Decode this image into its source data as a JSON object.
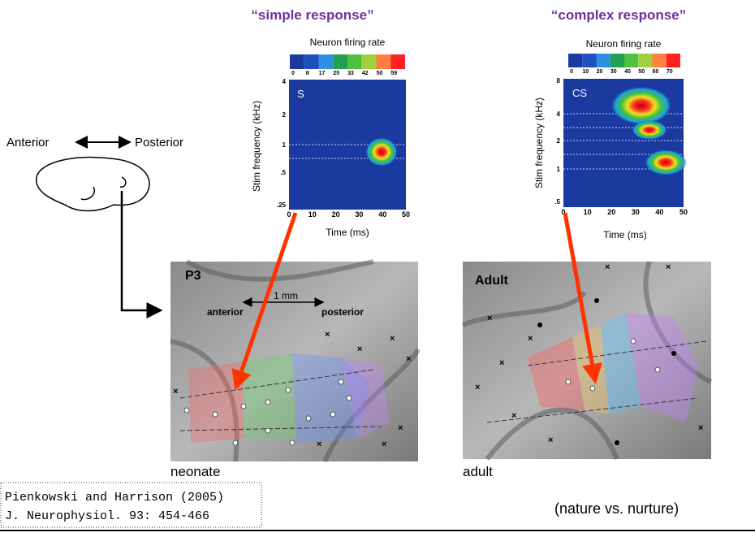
{
  "titles": {
    "simple": "“simple response”",
    "complex": "“complex response”"
  },
  "left_panel": {
    "anterior": "Anterior",
    "posterior": "Posterior"
  },
  "simple_plot": {
    "colorbar_title": "Neuron firing rate",
    "colorbar_ticks": [
      "0",
      "8",
      "17",
      "25",
      "33",
      "42",
      "50",
      "59"
    ],
    "panel_label": "S",
    "y_label": "Stim  frequency (kHz)",
    "y_ticks": [
      "4",
      "2",
      "1",
      ".5",
      ".25"
    ],
    "x_label": "Time (ms)",
    "x_ticks": [
      "0",
      "10",
      "20",
      "30",
      "40",
      "50"
    ]
  },
  "complex_plot": {
    "colorbar_title": "Neuron firing rate",
    "colorbar_ticks": [
      "0",
      "10",
      "20",
      "30",
      "40",
      "50",
      "60",
      "70"
    ],
    "panel_label": "CS",
    "y_label": "Stim  frequency (kHz)",
    "y_ticks": [
      "8",
      "4",
      "2",
      "1",
      ".5"
    ],
    "x_label": "Time (ms)",
    "x_ticks": [
      "0",
      "10",
      "20",
      "30",
      "40",
      "50"
    ]
  },
  "neonate_image": {
    "label": "P3",
    "scale": "1 mm",
    "anterior": "anterior",
    "posterior": "posterior",
    "caption": "neonate"
  },
  "adult_image": {
    "label": "Adult",
    "caption": "adult"
  },
  "citation": [
    "Pienkowski and Harrison (2005)",
    "J. Neurophysiol. 93: 454-466"
  ],
  "note": "(nature vs. nurture)"
}
